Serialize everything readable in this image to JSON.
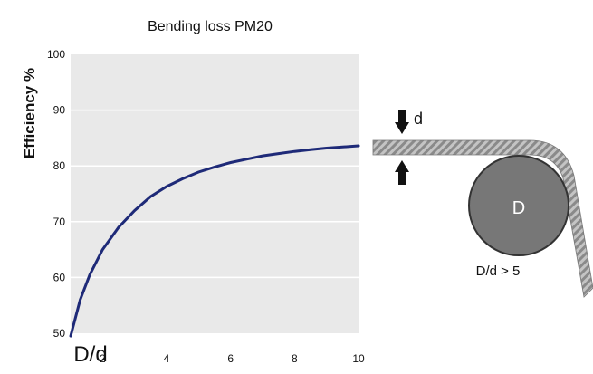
{
  "chart_data": {
    "type": "line",
    "title": "Bending loss PM20",
    "xlabel": "D/d",
    "ylabel": "Efficiency %",
    "xlim": [
      1,
      10
    ],
    "ylim": [
      50,
      100
    ],
    "xticks": [
      2,
      4,
      6,
      8,
      10
    ],
    "yticks": [
      50,
      60,
      70,
      80,
      90,
      100
    ],
    "grid": "horizontal",
    "series": [
      {
        "color": "#1e2a78",
        "points": [
          {
            "x": 1.0,
            "y": 49.5
          },
          {
            "x": 1.3,
            "y": 56.0
          },
          {
            "x": 1.6,
            "y": 60.5
          },
          {
            "x": 2.0,
            "y": 65.0
          },
          {
            "x": 2.5,
            "y": 69.0
          },
          {
            "x": 3.0,
            "y": 72.0
          },
          {
            "x": 3.5,
            "y": 74.5
          },
          {
            "x": 4.0,
            "y": 76.3
          },
          {
            "x": 4.5,
            "y": 77.7
          },
          {
            "x": 5.0,
            "y": 78.9
          },
          {
            "x": 5.5,
            "y": 79.8
          },
          {
            "x": 6.0,
            "y": 80.6
          },
          {
            "x": 6.5,
            "y": 81.2
          },
          {
            "x": 7.0,
            "y": 81.8
          },
          {
            "x": 7.5,
            "y": 82.2
          },
          {
            "x": 8.0,
            "y": 82.6
          },
          {
            "x": 8.5,
            "y": 82.9
          },
          {
            "x": 9.0,
            "y": 83.2
          },
          {
            "x": 9.5,
            "y": 83.4
          },
          {
            "x": 10.0,
            "y": 83.6
          }
        ]
      }
    ]
  },
  "diagram": {
    "thickness_label": "d",
    "circle_label": "D",
    "ratio_label": "D/d > 5"
  }
}
